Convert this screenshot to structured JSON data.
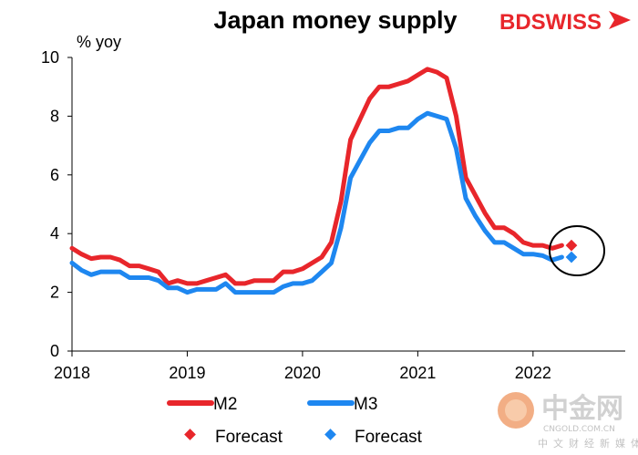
{
  "chart_data": {
    "type": "line",
    "title": "Japan money supply",
    "ylabel": "% yoy",
    "ylim": [
      0,
      10
    ],
    "yticks": [
      0,
      2,
      4,
      6,
      8,
      10
    ],
    "xticks": [
      "2018",
      "2019",
      "2020",
      "2021",
      "2022"
    ],
    "grid": false,
    "legend_position": "bottom",
    "series": [
      {
        "name": "M2",
        "color": "#e8262b",
        "x": [
          "2018-01",
          "2018-02",
          "2018-03",
          "2018-04",
          "2018-05",
          "2018-06",
          "2018-07",
          "2018-08",
          "2018-09",
          "2018-10",
          "2018-11",
          "2018-12",
          "2019-01",
          "2019-02",
          "2019-03",
          "2019-04",
          "2019-05",
          "2019-06",
          "2019-07",
          "2019-08",
          "2019-09",
          "2019-10",
          "2019-11",
          "2019-12",
          "2020-01",
          "2020-02",
          "2020-03",
          "2020-04",
          "2020-05",
          "2020-06",
          "2020-07",
          "2020-08",
          "2020-09",
          "2020-10",
          "2020-11",
          "2020-12",
          "2021-01",
          "2021-02",
          "2021-03",
          "2021-04",
          "2021-05",
          "2021-06",
          "2021-07",
          "2021-08",
          "2021-09",
          "2021-10",
          "2021-11",
          "2021-12",
          "2022-01",
          "2022-02",
          "2022-03",
          "2022-04"
        ],
        "values": [
          3.5,
          3.3,
          3.15,
          3.2,
          3.2,
          3.1,
          2.9,
          2.9,
          2.8,
          2.7,
          2.3,
          2.4,
          2.3,
          2.3,
          2.4,
          2.5,
          2.6,
          2.3,
          2.3,
          2.4,
          2.4,
          2.4,
          2.7,
          2.7,
          2.8,
          3.0,
          3.2,
          3.7,
          5.1,
          7.2,
          7.9,
          8.6,
          9.0,
          9.0,
          9.1,
          9.2,
          9.4,
          9.6,
          9.5,
          9.3,
          8.0,
          5.9,
          5.3,
          4.7,
          4.2,
          4.2,
          4.0,
          3.7,
          3.6,
          3.6,
          3.5,
          3.6
        ]
      },
      {
        "name": "M3",
        "color": "#1e87f0",
        "x": [
          "2018-01",
          "2018-02",
          "2018-03",
          "2018-04",
          "2018-05",
          "2018-06",
          "2018-07",
          "2018-08",
          "2018-09",
          "2018-10",
          "2018-11",
          "2018-12",
          "2019-01",
          "2019-02",
          "2019-03",
          "2019-04",
          "2019-05",
          "2019-06",
          "2019-07",
          "2019-08",
          "2019-09",
          "2019-10",
          "2019-11",
          "2019-12",
          "2020-01",
          "2020-02",
          "2020-03",
          "2020-04",
          "2020-05",
          "2020-06",
          "2020-07",
          "2020-08",
          "2020-09",
          "2020-10",
          "2020-11",
          "2020-12",
          "2021-01",
          "2021-02",
          "2021-03",
          "2021-04",
          "2021-05",
          "2021-06",
          "2021-07",
          "2021-08",
          "2021-09",
          "2021-10",
          "2021-11",
          "2021-12",
          "2022-01",
          "2022-02",
          "2022-03",
          "2022-04"
        ],
        "values": [
          3.0,
          2.75,
          2.6,
          2.7,
          2.7,
          2.7,
          2.5,
          2.5,
          2.5,
          2.4,
          2.15,
          2.15,
          2.0,
          2.1,
          2.1,
          2.1,
          2.3,
          2.0,
          2.0,
          2.0,
          2.0,
          2.0,
          2.2,
          2.3,
          2.3,
          2.4,
          2.7,
          3.0,
          4.2,
          5.9,
          6.5,
          7.1,
          7.5,
          7.5,
          7.6,
          7.6,
          7.9,
          8.1,
          8.0,
          7.9,
          6.9,
          5.2,
          4.6,
          4.1,
          3.7,
          3.7,
          3.5,
          3.3,
          3.3,
          3.25,
          3.1,
          3.2
        ]
      }
    ],
    "forecast": [
      {
        "name": "Forecast",
        "x": "2022-05",
        "value": 3.6,
        "color": "#e8262b"
      },
      {
        "name": "Forecast",
        "x": "2022-05",
        "value": 3.2,
        "color": "#1e87f0"
      }
    ],
    "annotation": "circle around forecast points"
  },
  "brand": {
    "text_bd": "BD",
    "text_swiss": "SWISS",
    "color": "#e8262b"
  },
  "watermark": {
    "big": "中金网",
    "domain": "CNGOLD.COM.CN",
    "tagline": "中文财经新媒体"
  }
}
